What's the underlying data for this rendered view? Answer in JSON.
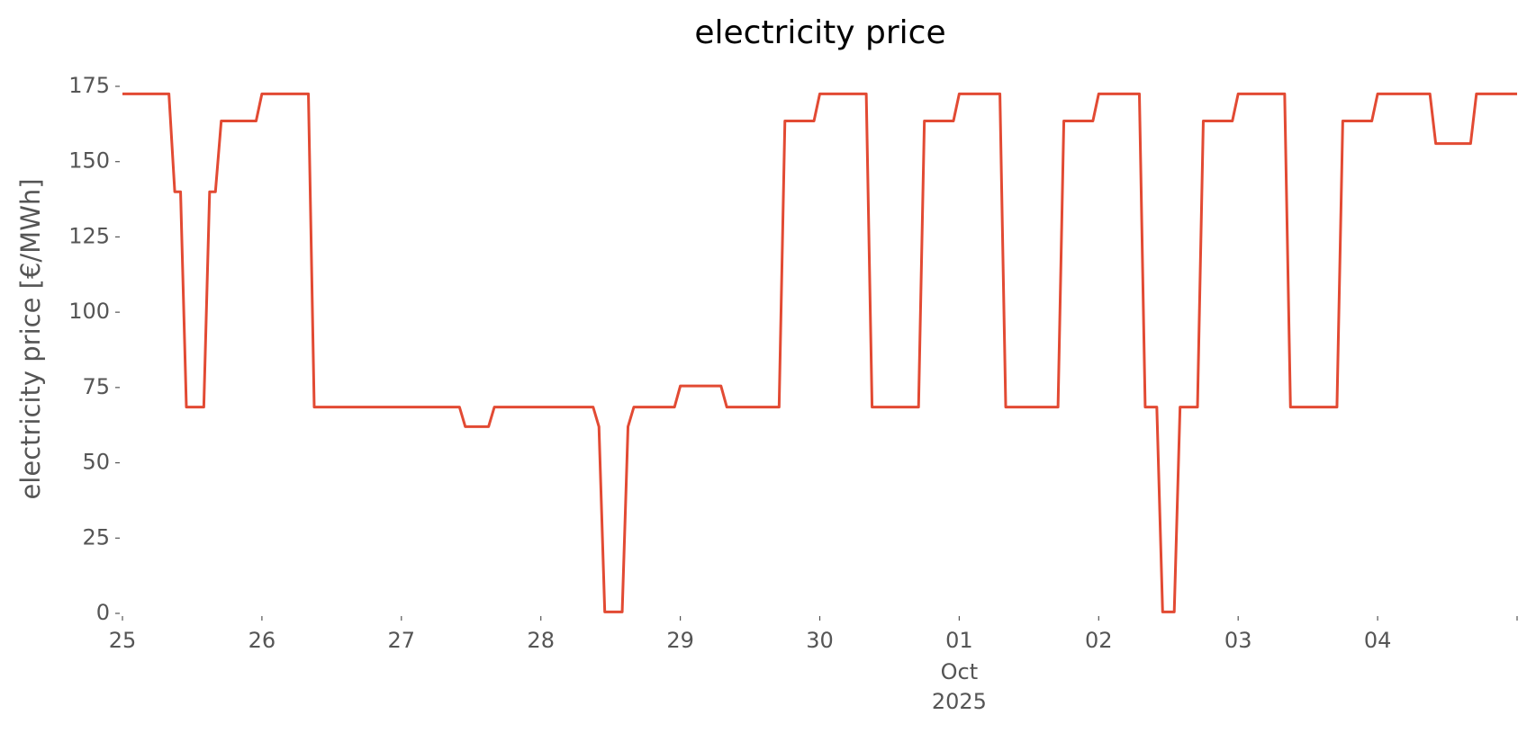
{
  "chart_data": {
    "type": "line",
    "title": "electricity price",
    "ylabel": "electricity price [€/MWh]",
    "x": [
      0,
      8,
      9,
      10,
      11,
      14,
      15,
      16,
      17,
      23,
      24,
      32,
      33,
      58,
      59,
      63,
      64,
      81,
      82,
      83,
      86,
      87,
      88,
      95,
      96,
      103,
      104,
      113,
      114,
      119,
      120,
      128,
      129,
      137,
      138,
      143,
      144,
      151,
      152,
      161,
      162,
      167,
      168,
      175,
      176,
      178,
      179,
      181,
      182,
      185,
      186,
      191,
      192,
      200,
      201,
      209,
      210,
      215,
      216,
      225,
      226,
      232,
      233,
      240
    ],
    "series": [
      {
        "name": "electricity price",
        "color": "#E24A33",
        "values": [
          172.5,
          172.5,
          140,
          140,
          68.5,
          68.5,
          140,
          140,
          163.5,
          163.5,
          172.5,
          172.5,
          68.5,
          68.5,
          62,
          62,
          68.5,
          68.5,
          62,
          0.5,
          0.5,
          62,
          68.5,
          68.5,
          75.5,
          75.5,
          68.5,
          68.5,
          163.5,
          163.5,
          172.5,
          172.5,
          68.5,
          68.5,
          163.5,
          163.5,
          172.5,
          172.5,
          68.5,
          68.5,
          163.5,
          163.5,
          172.5,
          172.5,
          68.5,
          68.5,
          0.5,
          0.5,
          68.5,
          68.5,
          163.5,
          163.5,
          172.5,
          172.5,
          68.5,
          68.5,
          163.5,
          163.5,
          172.5,
          172.5,
          156,
          156,
          172.5,
          172.5
        ]
      }
    ],
    "xlim": [
      0,
      240
    ],
    "xticks": [
      {
        "value": 0,
        "label": "25"
      },
      {
        "value": 24,
        "label": "26"
      },
      {
        "value": 48,
        "label": "27"
      },
      {
        "value": 72,
        "label": "28"
      },
      {
        "value": 96,
        "label": "29"
      },
      {
        "value": 120,
        "label": "30"
      },
      {
        "value": 144,
        "label": "01",
        "sublabel": [
          "Oct",
          "2025"
        ]
      },
      {
        "value": 168,
        "label": "02"
      },
      {
        "value": 192,
        "label": "03"
      },
      {
        "value": 216,
        "label": "04"
      }
    ],
    "ylim": [
      0,
      175
    ],
    "yticks": [
      0,
      25,
      50,
      75,
      100,
      125,
      150,
      175
    ],
    "grid": false
  }
}
